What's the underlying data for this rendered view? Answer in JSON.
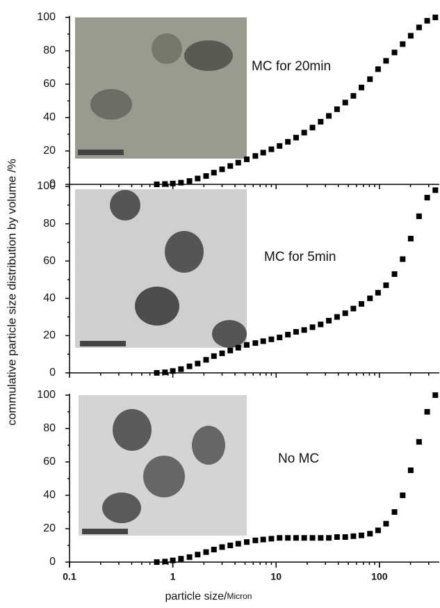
{
  "y_label": "commulative particle size distribution by volume /%",
  "x_label": "particle size/",
  "x_label_unit": "Micron",
  "chart_data": [
    {
      "type": "scatter",
      "annotation": "MC for 20min",
      "xscale": "log",
      "xlim": [
        0.1,
        380
      ],
      "ylim": [
        0,
        100
      ],
      "yticks": [
        0,
        20,
        40,
        60,
        80,
        100
      ],
      "color": "#000000",
      "x": [
        0.7,
        0.84,
        1.0,
        1.2,
        1.45,
        1.74,
        2.1,
        2.5,
        3.0,
        3.6,
        4.3,
        5.2,
        6.3,
        7.5,
        9.0,
        10.8,
        13,
        15.6,
        18.7,
        22.5,
        27,
        32.4,
        38.9,
        46.7,
        56,
        67,
        81,
        97,
        116,
        140,
        168,
        201,
        242,
        290,
        348
      ],
      "values": [
        0,
        0.2,
        0.5,
        1,
        2,
        3.5,
        5,
        7,
        9,
        11,
        13,
        15,
        17,
        19,
        21,
        23,
        25.5,
        28,
        31,
        34,
        37.5,
        41,
        45,
        49,
        53,
        58,
        63,
        69,
        74,
        79,
        84,
        89,
        94,
        98,
        100
      ]
    },
    {
      "type": "scatter",
      "annotation": "MC for 5min",
      "xscale": "log",
      "xlim": [
        0.1,
        380
      ],
      "ylim": [
        0,
        100
      ],
      "yticks": [
        0,
        20,
        40,
        60,
        80,
        100
      ],
      "color": "#000000",
      "x": [
        0.7,
        0.84,
        1.0,
        1.2,
        1.45,
        1.74,
        2.1,
        2.5,
        3.0,
        3.6,
        4.3,
        5.2,
        6.3,
        7.5,
        9.0,
        10.8,
        13,
        15.6,
        18.7,
        22.5,
        27,
        32.4,
        38.9,
        46.7,
        56,
        67,
        81,
        97,
        116,
        140,
        168,
        201,
        242,
        290,
        348
      ],
      "values": [
        0,
        0.3,
        1,
        2,
        3.5,
        5,
        7,
        9,
        10.5,
        12,
        13.5,
        15,
        16,
        17,
        18,
        19,
        20.5,
        22,
        23,
        24.5,
        26,
        28,
        30,
        32,
        34.5,
        37,
        40,
        43,
        47,
        53,
        61,
        72,
        84,
        94,
        98
      ]
    },
    {
      "type": "scatter",
      "annotation": "No  MC",
      "xscale": "log",
      "xlim": [
        0.1,
        380
      ],
      "ylim": [
        0,
        100
      ],
      "yticks": [
        0,
        20,
        40,
        60,
        80,
        100
      ],
      "xticks": [
        0.1,
        1,
        10,
        100
      ],
      "color": "#000000",
      "x": [
        0.7,
        0.84,
        1.0,
        1.2,
        1.45,
        1.74,
        2.1,
        2.5,
        3.0,
        3.6,
        4.3,
        5.2,
        6.3,
        7.5,
        9.0,
        10.8,
        13,
        15.6,
        18.7,
        22.5,
        27,
        32.4,
        38.9,
        46.7,
        56,
        67,
        81,
        97,
        116,
        140,
        168,
        201,
        242,
        290,
        348
      ],
      "values": [
        0,
        0.3,
        1,
        2,
        3,
        4.5,
        6,
        7.5,
        9,
        10,
        11,
        12,
        13,
        13.5,
        14,
        14.5,
        14.5,
        14.5,
        14.5,
        14.5,
        14.5,
        14.5,
        15,
        15,
        15.5,
        16,
        17,
        19,
        23,
        30,
        40,
        55,
        72,
        90,
        100
      ]
    }
  ]
}
